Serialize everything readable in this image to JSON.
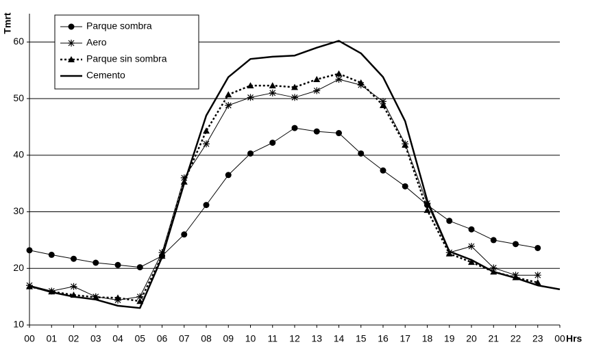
{
  "chart_data": {
    "type": "line",
    "y_label": "Tmrt",
    "x_label": "Hrs",
    "categories": [
      "00",
      "01",
      "02",
      "03",
      "04",
      "05",
      "06",
      "07",
      "08",
      "09",
      "10",
      "11",
      "12",
      "13",
      "14",
      "15",
      "16",
      "17",
      "18",
      "19",
      "20",
      "21",
      "22",
      "23",
      "00"
    ],
    "ylim": [
      10,
      65
    ],
    "yticks": [
      10,
      20,
      30,
      40,
      50,
      60
    ],
    "grid": true,
    "legend": "top-left",
    "series": [
      {
        "name": "Parque sombra",
        "color": "#000000",
        "marker": "circle",
        "line_style": "solid",
        "values": [
          23.2,
          22.4,
          21.7,
          21.0,
          20.6,
          20.2,
          22.2,
          26.0,
          31.2,
          36.5,
          40.3,
          42.2,
          44.8,
          44.2,
          43.9,
          40.3,
          37.3,
          34.5,
          31.2,
          28.4,
          26.9,
          25.0,
          24.3,
          23.6,
          null
        ]
      },
      {
        "name": "Aero",
        "color": "#000000",
        "marker": "asterisk",
        "line_style": "solid",
        "values": [
          17.0,
          16.0,
          16.8,
          15.0,
          14.4,
          15.0,
          22.8,
          36.0,
          42.0,
          48.8,
          50.2,
          51.0,
          50.2,
          51.4,
          53.4,
          52.4,
          49.5,
          42.0,
          31.5,
          22.8,
          23.9,
          20.1,
          18.8,
          18.8,
          null
        ]
      },
      {
        "name": "Parque sin sombra",
        "color": "#000000",
        "marker": "triangle",
        "line_style": "dashed",
        "values": [
          16.8,
          15.9,
          15.3,
          14.9,
          14.8,
          14.2,
          22.2,
          35.3,
          44.3,
          50.7,
          52.3,
          52.3,
          52.0,
          53.4,
          54.4,
          52.8,
          48.8,
          41.8,
          30.3,
          22.6,
          21.1,
          19.4,
          18.4,
          17.5,
          null
        ]
      },
      {
        "name": "Cemento",
        "color": "#000000",
        "marker": "none",
        "line_style": "bold",
        "values": [
          16.9,
          15.8,
          15.0,
          14.5,
          13.4,
          13.0,
          22.0,
          35.0,
          47.0,
          53.8,
          57.0,
          57.4,
          57.6,
          59.0,
          60.2,
          58.0,
          53.8,
          46.0,
          32.0,
          23.0,
          21.5,
          19.4,
          18.3,
          17.0,
          16.3
        ]
      }
    ]
  }
}
